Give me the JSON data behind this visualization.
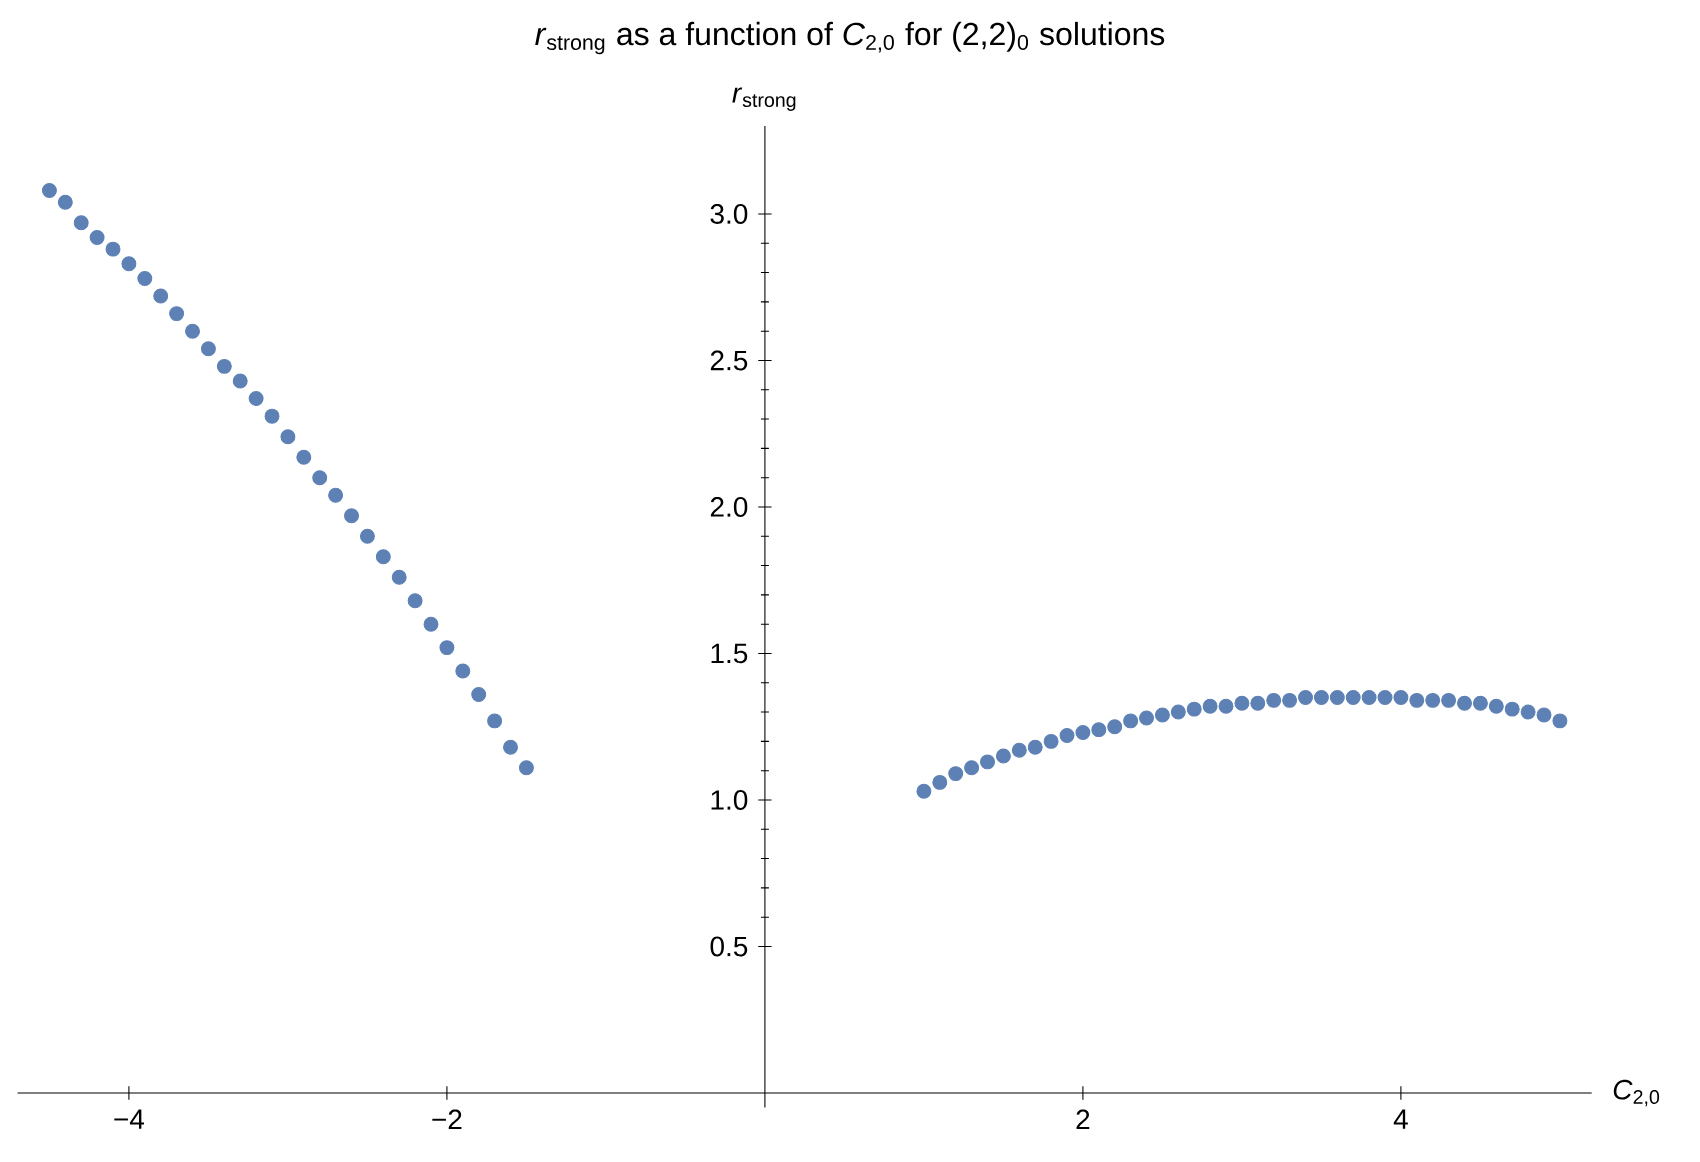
{
  "chart_data": {
    "type": "scatter",
    "title": "*r*$_{strong}$ as a function of *C*$_{2,0}$ for (2,2)$_{0}$ solutions",
    "xlabel": "*C*$_{2,0}$",
    "ylabel": "*r*$_{strong}$",
    "marker": "circle",
    "xlim": [
      -4.7,
      5.2
    ],
    "ylim": [
      -0.05,
      3.3
    ],
    "xticks": [
      {
        "value": -4,
        "label": "−4"
      },
      {
        "value": -2,
        "label": "−2"
      },
      2,
      4
    ],
    "yticks": [
      0.5,
      {
        "value": 1,
        "label": "1.0"
      },
      1.5,
      {
        "value": 2,
        "label": "2.0"
      },
      2.5,
      {
        "value": 3,
        "label": "3.0"
      }
    ],
    "series": [
      {
        "color": "#5e81b5",
        "x": [
          -4.5,
          -4.4,
          -4.3,
          -4.2,
          -4.1,
          -4.0,
          -3.9,
          -3.8,
          -3.7,
          -3.6,
          -3.5,
          -3.4,
          -3.3,
          -3.2,
          -3.1,
          -3.0,
          -2.9,
          -2.8,
          -2.7,
          -2.6,
          -2.5,
          -2.4,
          -2.3,
          -2.2,
          -2.1,
          -2.0,
          -1.9,
          -1.8,
          -1.7,
          -1.6,
          -1.5
        ],
        "values": [
          3.08,
          3.04,
          2.97,
          2.92,
          2.88,
          2.83,
          2.78,
          2.72,
          2.66,
          2.6,
          2.54,
          2.48,
          2.43,
          2.37,
          2.31,
          2.24,
          2.17,
          2.1,
          2.04,
          1.97,
          1.9,
          1.83,
          1.76,
          1.68,
          1.6,
          1.52,
          1.44,
          1.36,
          1.27,
          1.18,
          1.11
        ]
      },
      {
        "color": "#5e81b5",
        "x": [
          1.0,
          1.1,
          1.2,
          1.3,
          1.4,
          1.5,
          1.6,
          1.7,
          1.8,
          1.9,
          2.0,
          2.1,
          2.2,
          2.3,
          2.4,
          2.5,
          2.6,
          2.7,
          2.8,
          2.9,
          3.0,
          3.1,
          3.2,
          3.3,
          3.4,
          3.5,
          3.6,
          3.7,
          3.8,
          3.9,
          4.0,
          4.1,
          4.2,
          4.3,
          4.4,
          4.5,
          4.6,
          4.7,
          4.8,
          4.9,
          5.0
        ],
        "values": [
          1.03,
          1.06,
          1.09,
          1.11,
          1.13,
          1.15,
          1.17,
          1.18,
          1.2,
          1.22,
          1.23,
          1.24,
          1.25,
          1.27,
          1.28,
          1.29,
          1.3,
          1.31,
          1.32,
          1.32,
          1.33,
          1.33,
          1.34,
          1.34,
          1.35,
          1.35,
          1.35,
          1.35,
          1.35,
          1.35,
          1.35,
          1.34,
          1.34,
          1.34,
          1.33,
          1.33,
          1.32,
          1.31,
          1.3,
          1.29,
          1.27
        ]
      }
    ]
  }
}
